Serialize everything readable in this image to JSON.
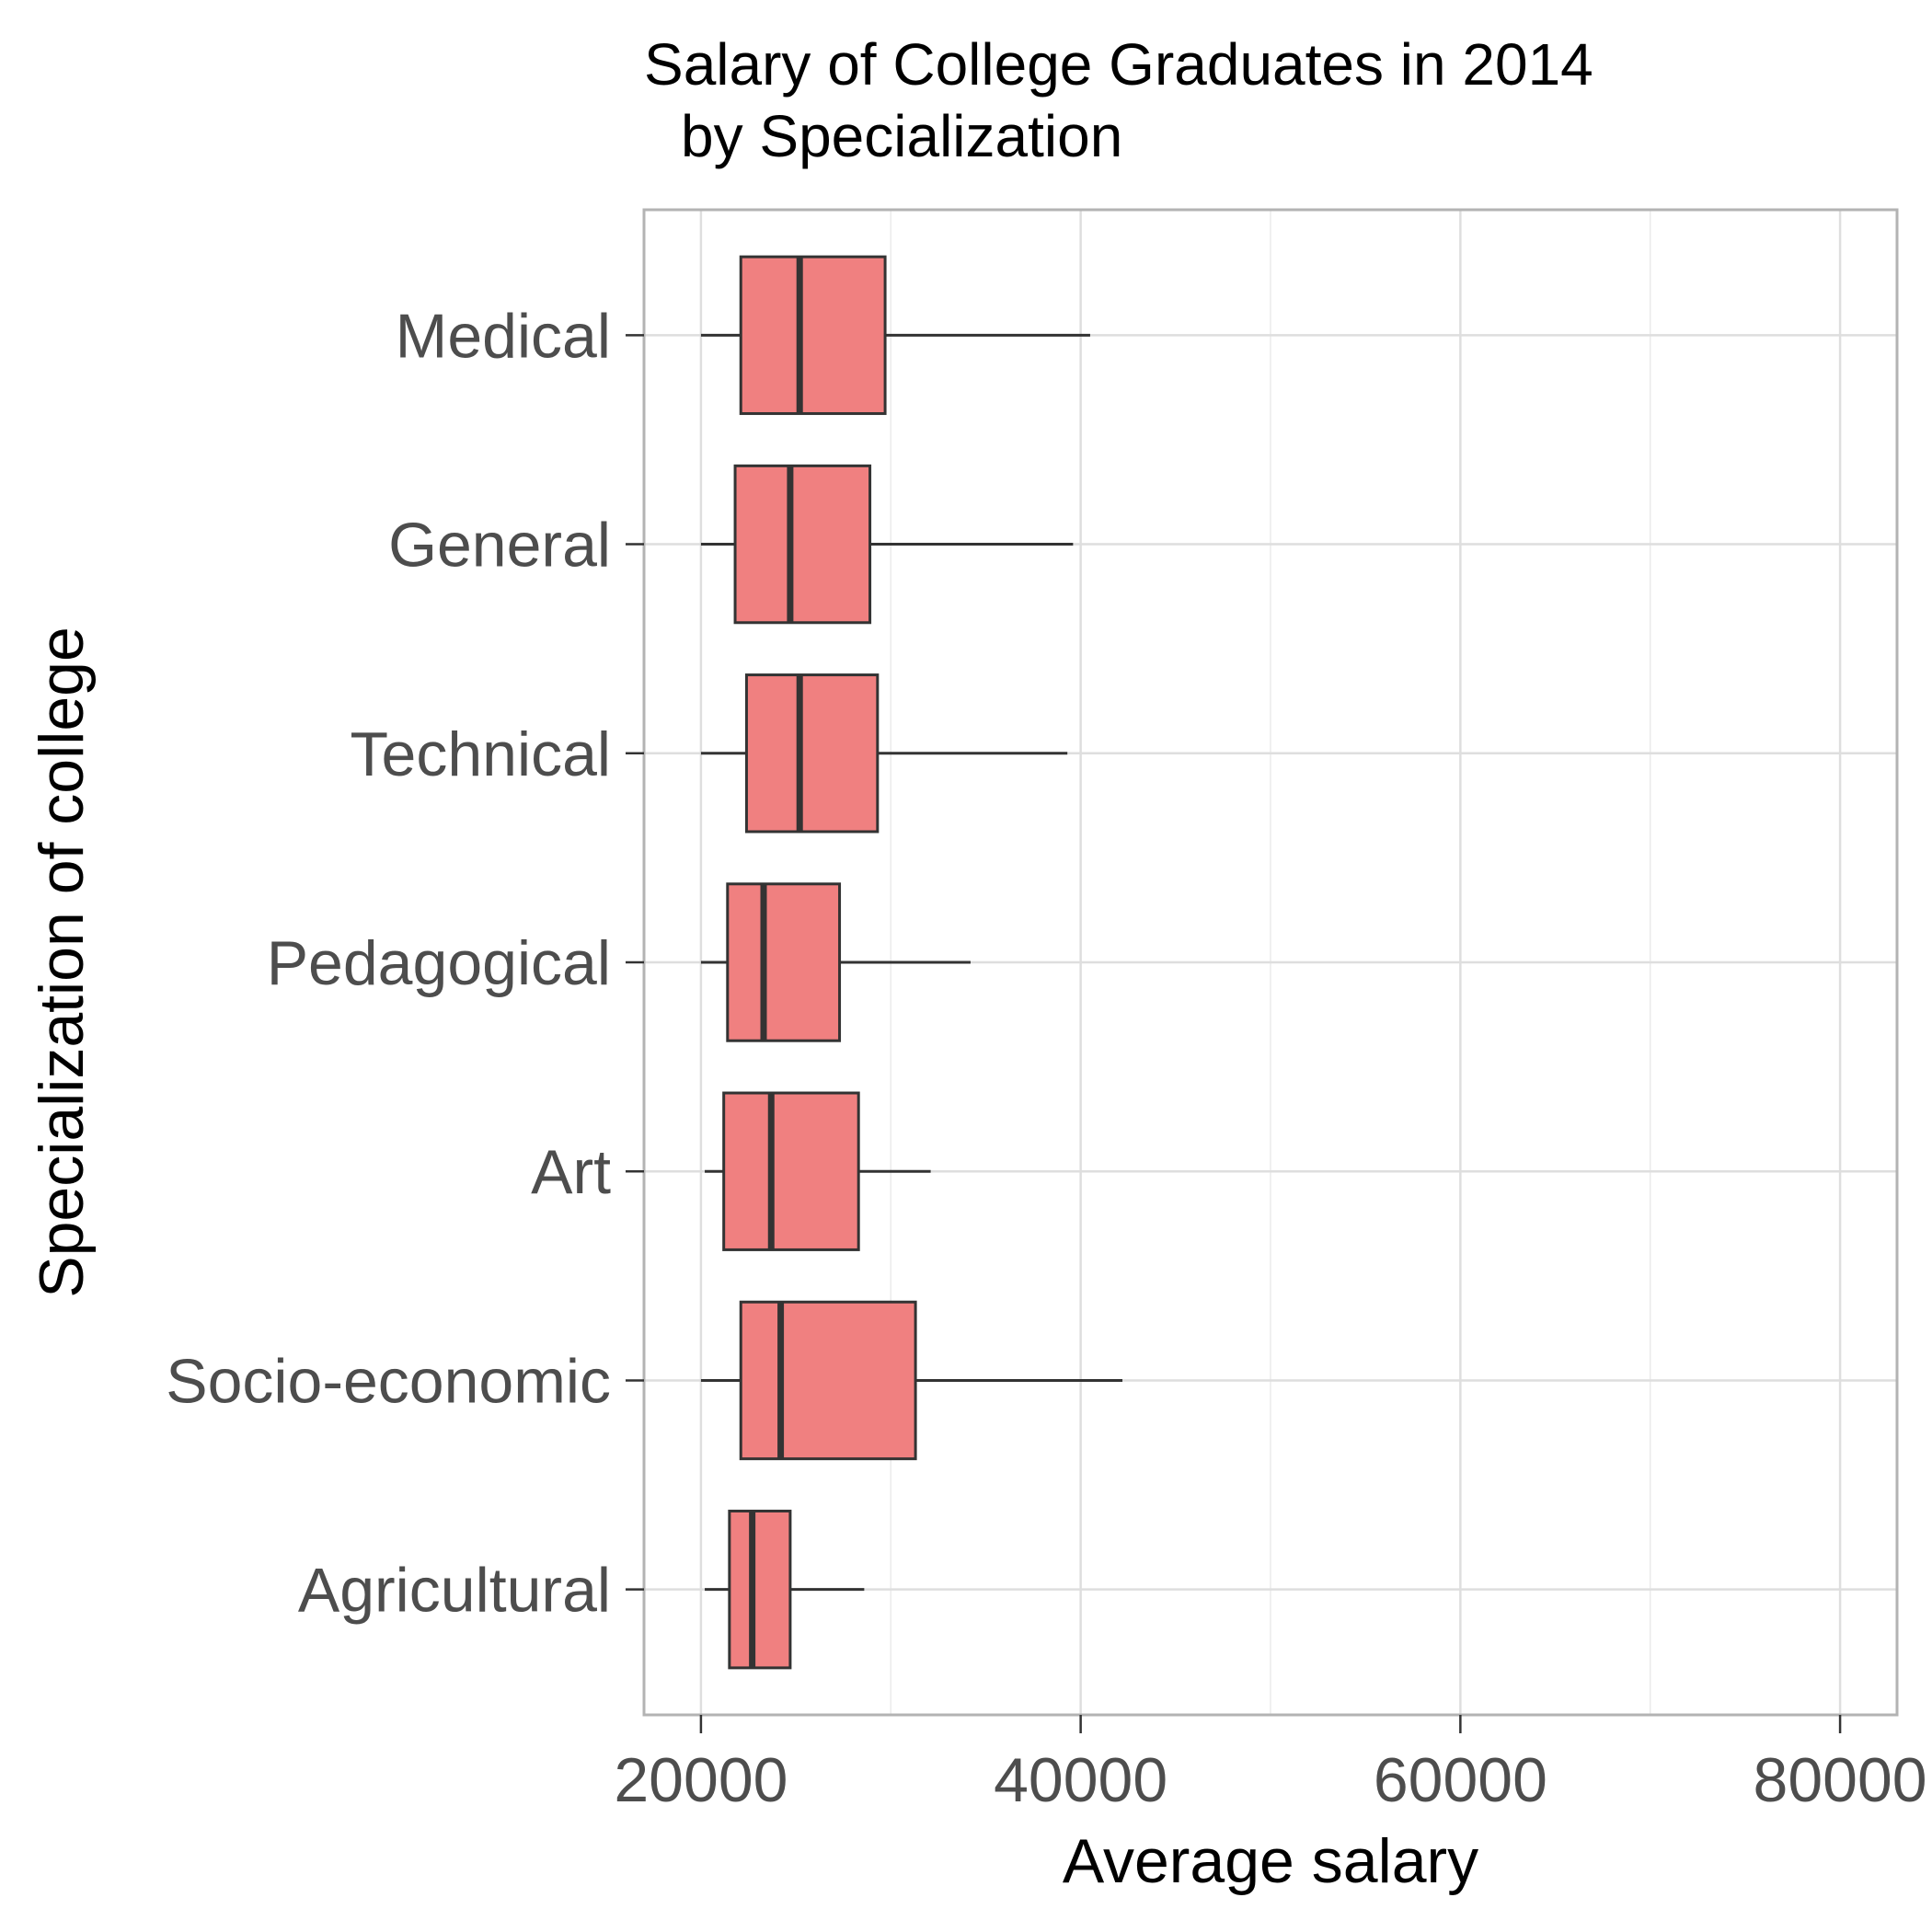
{
  "chart_data": {
    "type": "boxplot",
    "orientation": "horizontal",
    "title": [
      "Salary of College Graduates in 2014",
      "by Specialization"
    ],
    "xlabel": "Average salary",
    "ylabel": "Specialization of college",
    "xlim": [
      17000,
      83000
    ],
    "x_ticks": [
      20000,
      40000,
      60000,
      80000
    ],
    "x_tick_labels": [
      "20000",
      "40000",
      "60000",
      "80000"
    ],
    "grid": true,
    "legend": "none",
    "box_color": "#f08080",
    "line_color": "#333333",
    "categories": [
      "Medical",
      "General",
      "Technical",
      "Pedagogical",
      "Art",
      "Socio-economic",
      "Agricultural"
    ],
    "boxes": [
      {
        "category": "Medical",
        "min": 20000,
        "q1": 22100,
        "median": 25200,
        "q3": 29700,
        "max": 40500
      },
      {
        "category": "General",
        "min": 20000,
        "q1": 21800,
        "median": 24700,
        "q3": 28900,
        "max": 39600
      },
      {
        "category": "Technical",
        "min": 20000,
        "q1": 22400,
        "median": 25200,
        "q3": 29300,
        "max": 39300
      },
      {
        "category": "Pedagogical",
        "min": 20000,
        "q1": 21400,
        "median": 23300,
        "q3": 27300,
        "max": 34200
      },
      {
        "category": "Art",
        "min": 20200,
        "q1": 21200,
        "median": 23700,
        "q3": 28300,
        "max": 32100
      },
      {
        "category": "Socio-economic",
        "min": 20000,
        "q1": 22100,
        "median": 24200,
        "q3": 31300,
        "max": 42200
      },
      {
        "category": "Agricultural",
        "min": 20200,
        "q1": 21500,
        "median": 22700,
        "q3": 24700,
        "max": 28600
      }
    ]
  }
}
